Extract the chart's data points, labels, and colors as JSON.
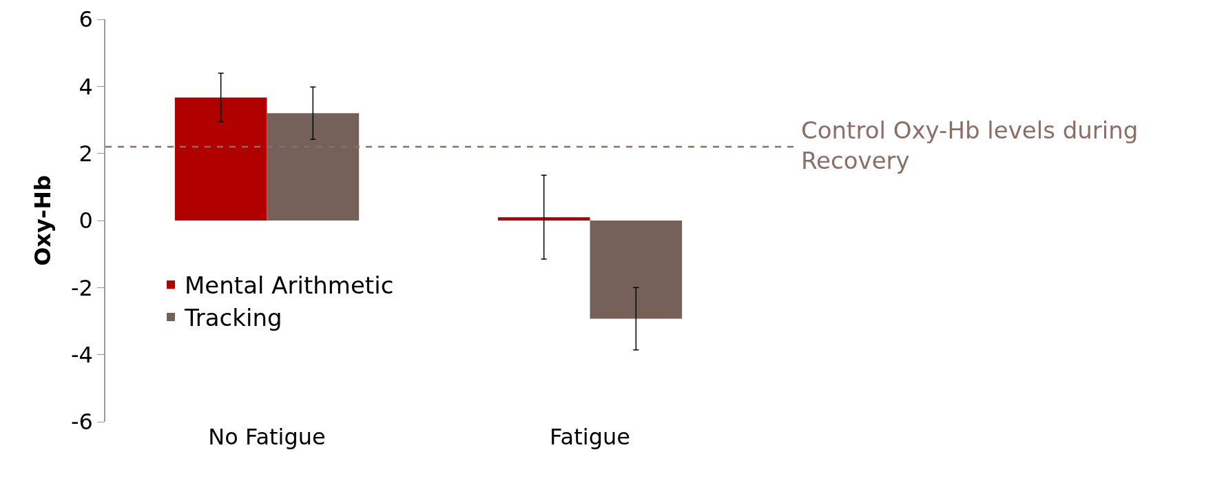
{
  "chart_data": {
    "type": "bar",
    "ylabel": "Oxy-Hb",
    "categories": [
      "No Fatigue",
      "Fatigue"
    ],
    "series": [
      {
        "name": "Mental Arithmetic",
        "color": "#b00000",
        "values": [
          3.67,
          0.1
        ],
        "errors": [
          0.72,
          1.25
        ]
      },
      {
        "name": "Tracking",
        "color": "#75615a",
        "values": [
          3.2,
          -2.93
        ],
        "errors": [
          0.78,
          0.93
        ]
      }
    ],
    "ylim": [
      -6,
      6
    ],
    "yticks": [
      -6,
      -4,
      -2,
      0,
      2,
      4,
      6
    ],
    "grid": false,
    "legend": "left",
    "ref_lines": [
      {
        "axis": "y",
        "value": 2.2,
        "label": "Control Oxy-Hb levels during Recovery",
        "color": "#8b6f66",
        "line_style": "dashed"
      }
    ]
  }
}
